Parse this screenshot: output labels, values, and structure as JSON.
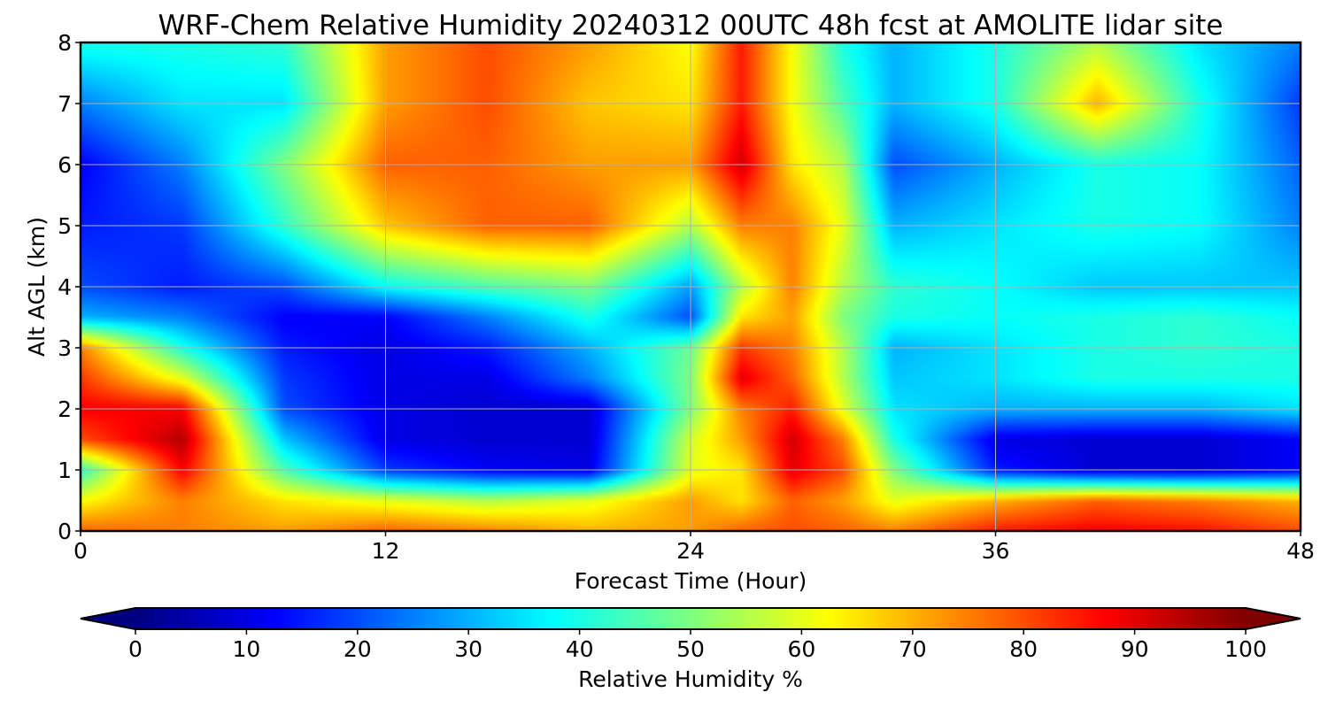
{
  "chart_data": {
    "type": "heatmap",
    "title": "WRF-Chem Relative Humidity 20240312 00UTC 48h fcst at AMOLITE lidar site",
    "xlabel": "Forecast Time (Hour)",
    "ylabel": "Alt AGL (km)",
    "xlim": [
      0,
      48
    ],
    "ylim": [
      0,
      8
    ],
    "x_ticks": [
      0,
      12,
      24,
      36,
      48
    ],
    "y_ticks": [
      0,
      1,
      2,
      3,
      4,
      5,
      6,
      7,
      8
    ],
    "grid": true,
    "colormap": "jet",
    "colorbar": {
      "label": "Relative Humidity %",
      "min": 0,
      "max": 100,
      "ticks": [
        0,
        10,
        20,
        30,
        40,
        50,
        60,
        70,
        80,
        90,
        100
      ],
      "extend": "both",
      "orientation": "horizontal"
    },
    "x": [
      0,
      4,
      8,
      12,
      16,
      20,
      24,
      26,
      28,
      30,
      32,
      36,
      40,
      44,
      48
    ],
    "y": [
      0,
      0.5,
      1,
      1.5,
      2,
      2.5,
      3,
      3.5,
      4,
      5,
      6,
      7,
      8
    ],
    "z": [
      [
        78,
        75,
        72,
        78,
        75,
        70,
        72,
        78,
        80,
        78,
        75,
        85,
        88,
        86,
        80
      ],
      [
        62,
        75,
        65,
        60,
        55,
        60,
        72,
        65,
        78,
        72,
        60,
        70,
        78,
        75,
        70
      ],
      [
        42,
        88,
        45,
        18,
        12,
        10,
        60,
        65,
        90,
        80,
        50,
        15,
        8,
        8,
        12
      ],
      [
        80,
        95,
        32,
        10,
        8,
        8,
        58,
        72,
        92,
        75,
        40,
        10,
        8,
        8,
        12
      ],
      [
        88,
        88,
        20,
        10,
        8,
        8,
        50,
        75,
        85,
        60,
        35,
        30,
        30,
        30,
        35
      ],
      [
        82,
        60,
        18,
        10,
        10,
        25,
        50,
        90,
        78,
        55,
        32,
        35,
        40,
        40,
        40
      ],
      [
        75,
        40,
        15,
        10,
        15,
        30,
        48,
        82,
        75,
        55,
        30,
        35,
        40,
        42,
        40
      ],
      [
        30,
        25,
        12,
        12,
        25,
        40,
        20,
        65,
        72,
        50,
        40,
        38,
        40,
        42,
        38
      ],
      [
        20,
        15,
        20,
        38,
        45,
        50,
        28,
        55,
        75,
        55,
        42,
        38,
        32,
        32,
        32
      ],
      [
        15,
        18,
        42,
        68,
        78,
        78,
        55,
        75,
        75,
        60,
        30,
        35,
        40,
        38,
        25
      ],
      [
        12,
        25,
        50,
        78,
        78,
        72,
        72,
        92,
        65,
        55,
        20,
        30,
        40,
        38,
        22
      ],
      [
        25,
        35,
        35,
        72,
        80,
        68,
        65,
        85,
        62,
        45,
        30,
        40,
        70,
        40,
        18
      ],
      [
        40,
        40,
        42,
        72,
        80,
        72,
        62,
        85,
        62,
        40,
        30,
        40,
        55,
        35,
        25
      ]
    ]
  }
}
